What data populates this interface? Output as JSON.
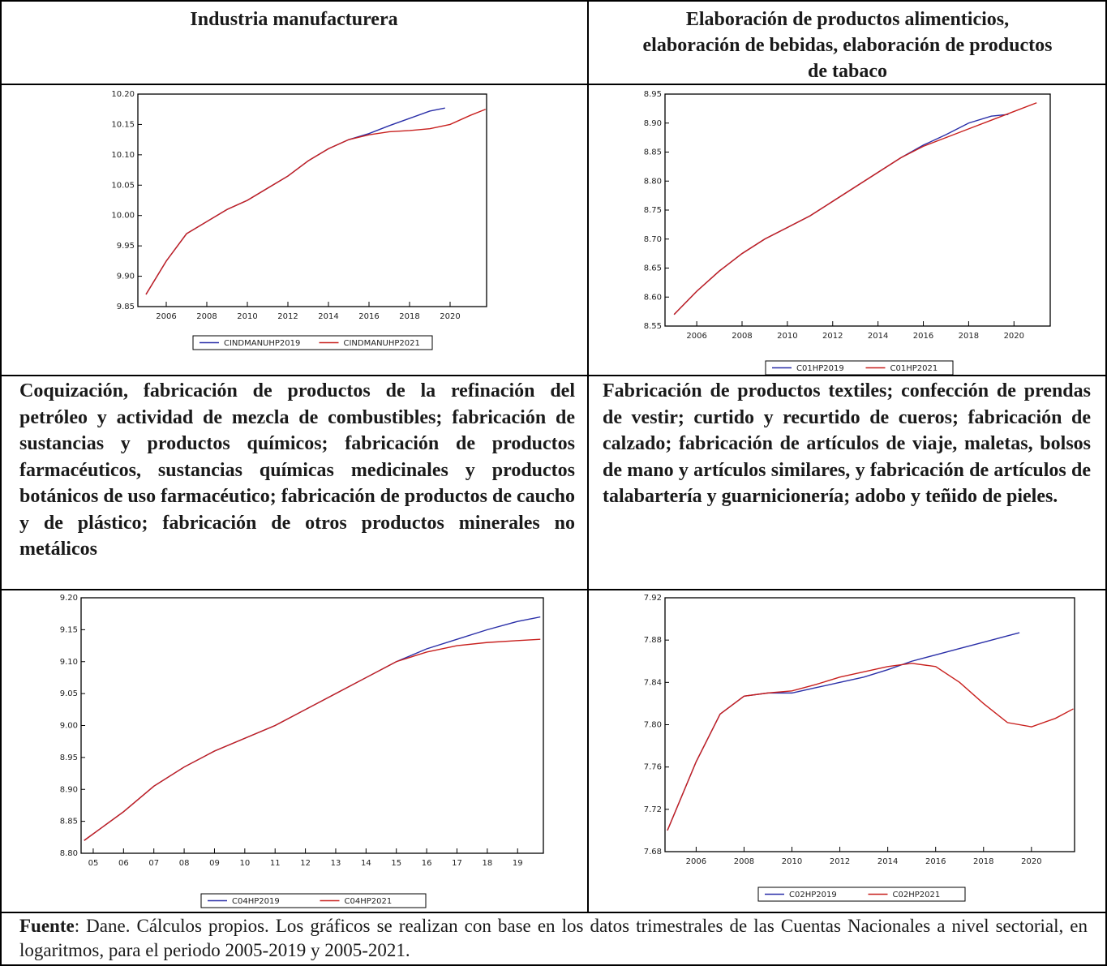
{
  "table": {
    "headers": [
      "Industria manufacturera",
      "Elaboración de productos alimenticios, elaboración de bebidas, elaboración de productos de tabaco",
      "Coquización, fabricación de productos de la refinación del petróleo y actividad de mezcla de combustibles; fabricación de sustancias y productos químicos; fabricación de productos farmacéuticos, sustancias químicas medicinales y productos botánicos de uso farmacéutico; fabricación de productos de caucho y de plástico; fabricación de otros productos minerales no metálicos",
      "Fabricación de productos textiles; confección de prendas de vestir; curtido y recurtido de cueros; fabricación de calzado; fabricación de artículos de viaje, maletas, bolsos de mano y artículos similares, y fabricación de artículos de talabartería y guarnicionería; adobo y teñido de pieles."
    ]
  },
  "chart_data": [
    {
      "type": "line",
      "xlim": [
        2004.6,
        2021.8
      ],
      "ylim": [
        9.85,
        10.2
      ],
      "xticks": [
        2006,
        2008,
        2010,
        2012,
        2014,
        2016,
        2018,
        2020
      ],
      "yticks": [
        9.85,
        {
          "value": 9.9,
          "label": "9.90"
        },
        9.95,
        {
          "value": 10,
          "label": "10.00"
        },
        10.05,
        {
          "value": 10.1,
          "label": "10.10"
        },
        10.15,
        {
          "value": 10.2,
          "label": "10.20"
        }
      ],
      "series": [
        {
          "name": "CINDMANUHP2019",
          "color": "#2a2fa8",
          "x": [
            2005,
            2006,
            2007,
            2008,
            2009,
            2010,
            2011,
            2012,
            2013,
            2014,
            2015,
            2016,
            2017,
            2018,
            2019,
            2019.75
          ],
          "values": [
            9.87,
            9.925,
            9.97,
            9.99,
            10.01,
            10.025,
            10.045,
            10.065,
            10.09,
            10.11,
            10.125,
            10.135,
            10.148,
            10.16,
            10.172,
            10.177
          ]
        },
        {
          "name": "CINDMANUHP2021",
          "color": "#c8201e",
          "x": [
            2005,
            2006,
            2007,
            2008,
            2009,
            2010,
            2011,
            2012,
            2013,
            2014,
            2015,
            2016,
            2017,
            2018,
            2019,
            2020,
            2021,
            2021.75
          ],
          "values": [
            9.87,
            9.925,
            9.97,
            9.99,
            10.01,
            10.025,
            10.045,
            10.065,
            10.09,
            10.11,
            10.125,
            10.133,
            10.138,
            10.14,
            10.143,
            10.15,
            10.165,
            10.175
          ]
        }
      ]
    },
    {
      "type": "line",
      "xlim": [
        2004.6,
        2021.6
      ],
      "ylim": [
        8.55,
        8.95
      ],
      "xticks": [
        2006,
        2008,
        2010,
        2012,
        2014,
        2016,
        2018,
        2020
      ],
      "yticks": [
        8.55,
        {
          "value": 8.6,
          "label": "8.60"
        },
        8.65,
        {
          "value": 8.7,
          "label": "8.70"
        },
        8.75,
        {
          "value": 8.8,
          "label": "8.80"
        },
        8.85,
        {
          "value": 8.9,
          "label": "8.90"
        },
        8.95
      ],
      "series": [
        {
          "name": "C01HP2019",
          "color": "#2a2fa8",
          "x": [
            2005,
            2006,
            2007,
            2008,
            2009,
            2010,
            2011,
            2012,
            2013,
            2014,
            2015,
            2016,
            2017,
            2018,
            2019,
            2019.75
          ],
          "values": [
            8.57,
            8.61,
            8.645,
            8.675,
            8.7,
            8.72,
            8.74,
            8.765,
            8.79,
            8.815,
            8.84,
            8.862,
            8.88,
            8.9,
            8.912,
            8.915
          ]
        },
        {
          "name": "C01HP2021",
          "color": "#c8201e",
          "x": [
            2005,
            2006,
            2007,
            2008,
            2009,
            2010,
            2011,
            2012,
            2013,
            2014,
            2015,
            2016,
            2017,
            2018,
            2019,
            2020,
            2021
          ],
          "values": [
            8.57,
            8.61,
            8.645,
            8.675,
            8.7,
            8.72,
            8.74,
            8.765,
            8.79,
            8.815,
            8.84,
            8.86,
            8.875,
            8.89,
            8.905,
            8.92,
            8.935
          ]
        }
      ]
    },
    {
      "type": "line",
      "xlim": [
        2004.6,
        2019.85
      ],
      "ylim": [
        8.8,
        9.2
      ],
      "xticks": [
        {
          "value": 2005,
          "label": "05"
        },
        {
          "value": 2006,
          "label": "06"
        },
        {
          "value": 2007,
          "label": "07"
        },
        {
          "value": 2008,
          "label": "08"
        },
        {
          "value": 2009,
          "label": "09"
        },
        {
          "value": 2010,
          "label": "10"
        },
        {
          "value": 2011,
          "label": "11"
        },
        {
          "value": 2012,
          "label": "12"
        },
        {
          "value": 2013,
          "label": "13"
        },
        {
          "value": 2014,
          "label": "14"
        },
        {
          "value": 2015,
          "label": "15"
        },
        {
          "value": 2016,
          "label": "16"
        },
        {
          "value": 2017,
          "label": "17"
        },
        {
          "value": 2018,
          "label": "18"
        },
        {
          "value": 2019,
          "label": "19"
        }
      ],
      "yticks": [
        {
          "value": 8.8,
          "label": "8.80"
        },
        8.85,
        {
          "value": 8.9,
          "label": "8.90"
        },
        8.95,
        {
          "value": 9,
          "label": "9.00"
        },
        9.05,
        {
          "value": 9.1,
          "label": "9.10"
        },
        9.15,
        {
          "value": 9.2,
          "label": "9.20"
        }
      ],
      "series": [
        {
          "name": "C04HP2019",
          "color": "#2a2fa8",
          "x": [
            2004.7,
            2006,
            2007,
            2008,
            2009,
            2010,
            2011,
            2012,
            2013,
            2014,
            2015,
            2016,
            2017,
            2018,
            2019,
            2019.75
          ],
          "values": [
            8.82,
            8.865,
            8.905,
            8.935,
            8.96,
            8.98,
            9.0,
            9.025,
            9.05,
            9.075,
            9.1,
            9.12,
            9.135,
            9.15,
            9.163,
            9.17
          ]
        },
        {
          "name": "C04HP2021",
          "color": "#c8201e",
          "x": [
            2004.7,
            2006,
            2007,
            2008,
            2009,
            2010,
            2011,
            2012,
            2013,
            2014,
            2015,
            2016,
            2017,
            2018,
            2019,
            2019.75
          ],
          "values": [
            8.82,
            8.865,
            8.905,
            8.935,
            8.96,
            8.98,
            9.0,
            9.025,
            9.05,
            9.075,
            9.1,
            9.115,
            9.125,
            9.13,
            9.133,
            9.135
          ]
        }
      ]
    },
    {
      "type": "line",
      "xlim": [
        2004.7,
        2021.8
      ],
      "ylim": [
        7.68,
        7.92
      ],
      "xticks": [
        2006,
        2008,
        2010,
        2012,
        2014,
        2016,
        2018,
        2020
      ],
      "yticks": [
        7.68,
        7.72,
        7.76,
        {
          "value": 7.8,
          "label": "7.80"
        },
        7.84,
        7.88,
        7.92
      ],
      "series": [
        {
          "name": "C02HP2019",
          "color": "#2a2fa8",
          "x": [
            2004.8,
            2006,
            2007,
            2008,
            2009,
            2010,
            2011,
            2012,
            2013,
            2014,
            2015,
            2016,
            2017,
            2018,
            2019,
            2019.5
          ],
          "values": [
            7.7,
            7.765,
            7.81,
            7.827,
            7.83,
            7.83,
            7.835,
            7.84,
            7.845,
            7.852,
            7.86,
            7.866,
            7.872,
            7.878,
            7.884,
            7.887
          ]
        },
        {
          "name": "C02HP2021",
          "color": "#c8201e",
          "x": [
            2004.8,
            2006,
            2007,
            2008,
            2009,
            2010,
            2011,
            2012,
            2013,
            2014,
            2015,
            2016,
            2017,
            2018,
            2019,
            2020,
            2021,
            2021.75
          ],
          "values": [
            7.7,
            7.765,
            7.81,
            7.827,
            7.83,
            7.832,
            7.838,
            7.845,
            7.85,
            7.855,
            7.858,
            7.855,
            7.84,
            7.82,
            7.802,
            7.798,
            7.806,
            7.815
          ]
        }
      ]
    }
  ],
  "footer": {
    "label": "Fuente",
    "text": ": Dane. Cálculos propios. Los gráficos se realizan con base en los datos trimestrales de las Cuentas Nacionales a nivel sectorial, en logaritmos, para el periodo 2005-2019 y 2005-2021."
  }
}
